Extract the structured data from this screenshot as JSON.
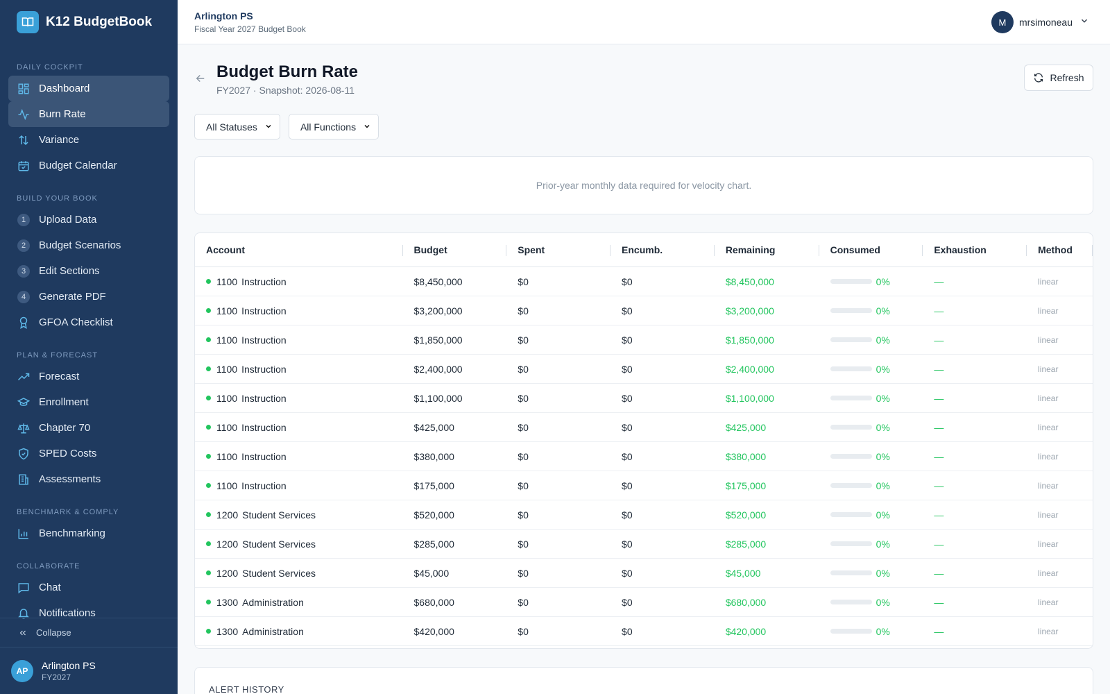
{
  "app": {
    "name": "K12 BudgetBook"
  },
  "sidebar": {
    "sections": [
      {
        "title": "DAILY COCKPIT",
        "items": [
          {
            "label": "Dashboard",
            "icon": "dashboard-icon",
            "active": true
          },
          {
            "label": "Burn Rate",
            "icon": "activity-icon",
            "active": true
          },
          {
            "label": "Variance",
            "icon": "arrows-up-down-icon",
            "active": false
          },
          {
            "label": "Budget Calendar",
            "icon": "calendar-icon",
            "active": false
          }
        ]
      },
      {
        "title": "BUILD YOUR BOOK",
        "items": [
          {
            "label": "Upload Data",
            "step": "1"
          },
          {
            "label": "Budget Scenarios",
            "step": "2"
          },
          {
            "label": "Edit Sections",
            "step": "3"
          },
          {
            "label": "Generate PDF",
            "step": "4"
          },
          {
            "label": "GFOA Checklist",
            "icon": "award-icon"
          }
        ]
      },
      {
        "title": "PLAN & FORECAST",
        "items": [
          {
            "label": "Forecast",
            "icon": "trending-up-icon"
          },
          {
            "label": "Enrollment",
            "icon": "graduation-cap-icon"
          },
          {
            "label": "Chapter 70",
            "icon": "scale-icon"
          },
          {
            "label": "SPED Costs",
            "icon": "shield-icon"
          },
          {
            "label": "Assessments",
            "icon": "building-icon"
          }
        ]
      },
      {
        "title": "BENCHMARK & COMPLY",
        "items": [
          {
            "label": "Benchmarking",
            "icon": "bar-chart-icon"
          }
        ]
      },
      {
        "title": "COLLABORATE",
        "items": [
          {
            "label": "Chat",
            "icon": "message-icon"
          },
          {
            "label": "Notifications",
            "icon": "bell-icon"
          }
        ]
      }
    ],
    "collapse_label": "Collapse",
    "footer": {
      "initials": "AP",
      "name": "Arlington PS",
      "fy": "FY2027"
    }
  },
  "topbar": {
    "org_name": "Arlington PS",
    "org_sub": "Fiscal Year 2027 Budget Book",
    "user_initial": "M",
    "user_name": "mrsimoneau"
  },
  "page": {
    "title": "Budget Burn Rate",
    "subtitle": "FY2027 · Snapshot: 2026-08-11",
    "refresh_label": "Refresh",
    "filters": [
      "All Statuses",
      "All Functions"
    ],
    "velocity_empty": "Prior-year monthly data required for velocity chart.",
    "alert_history_title": "ALERT HISTORY"
  },
  "colors": {
    "green": "#22c55e",
    "sidebar": "#1f3a5f",
    "accent": "#3aa0d8"
  },
  "table": {
    "columns": [
      "Account",
      "Budget",
      "Spent",
      "Encumb.",
      "Remaining",
      "Consumed",
      "Exhaustion",
      "Method"
    ],
    "rows": [
      {
        "code": "1100",
        "name": "Instruction",
        "budget": "$8,450,000",
        "spent": "$0",
        "encumb": "$0",
        "remaining": "$8,450,000",
        "consumed": "0%",
        "consumed_fraction": 0,
        "exhaustion": "—",
        "method": "linear"
      },
      {
        "code": "1100",
        "name": "Instruction",
        "budget": "$3,200,000",
        "spent": "$0",
        "encumb": "$0",
        "remaining": "$3,200,000",
        "consumed": "0%",
        "consumed_fraction": 0,
        "exhaustion": "—",
        "method": "linear"
      },
      {
        "code": "1100",
        "name": "Instruction",
        "budget": "$1,850,000",
        "spent": "$0",
        "encumb": "$0",
        "remaining": "$1,850,000",
        "consumed": "0%",
        "consumed_fraction": 0,
        "exhaustion": "—",
        "method": "linear"
      },
      {
        "code": "1100",
        "name": "Instruction",
        "budget": "$2,400,000",
        "spent": "$0",
        "encumb": "$0",
        "remaining": "$2,400,000",
        "consumed": "0%",
        "consumed_fraction": 0,
        "exhaustion": "—",
        "method": "linear"
      },
      {
        "code": "1100",
        "name": "Instruction",
        "budget": "$1,100,000",
        "spent": "$0",
        "encumb": "$0",
        "remaining": "$1,100,000",
        "consumed": "0%",
        "consumed_fraction": 0,
        "exhaustion": "—",
        "method": "linear"
      },
      {
        "code": "1100",
        "name": "Instruction",
        "budget": "$425,000",
        "spent": "$0",
        "encumb": "$0",
        "remaining": "$425,000",
        "consumed": "0%",
        "consumed_fraction": 0,
        "exhaustion": "—",
        "method": "linear"
      },
      {
        "code": "1100",
        "name": "Instruction",
        "budget": "$380,000",
        "spent": "$0",
        "encumb": "$0",
        "remaining": "$380,000",
        "consumed": "0%",
        "consumed_fraction": 0,
        "exhaustion": "—",
        "method": "linear"
      },
      {
        "code": "1100",
        "name": "Instruction",
        "budget": "$175,000",
        "spent": "$0",
        "encumb": "$0",
        "remaining": "$175,000",
        "consumed": "0%",
        "consumed_fraction": 0,
        "exhaustion": "—",
        "method": "linear"
      },
      {
        "code": "1200",
        "name": "Student Services",
        "budget": "$520,000",
        "spent": "$0",
        "encumb": "$0",
        "remaining": "$520,000",
        "consumed": "0%",
        "consumed_fraction": 0,
        "exhaustion": "—",
        "method": "linear"
      },
      {
        "code": "1200",
        "name": "Student Services",
        "budget": "$285,000",
        "spent": "$0",
        "encumb": "$0",
        "remaining": "$285,000",
        "consumed": "0%",
        "consumed_fraction": 0,
        "exhaustion": "—",
        "method": "linear"
      },
      {
        "code": "1200",
        "name": "Student Services",
        "budget": "$45,000",
        "spent": "$0",
        "encumb": "$0",
        "remaining": "$45,000",
        "consumed": "0%",
        "consumed_fraction": 0,
        "exhaustion": "—",
        "method": "linear"
      },
      {
        "code": "1300",
        "name": "Administration",
        "budget": "$680,000",
        "spent": "$0",
        "encumb": "$0",
        "remaining": "$680,000",
        "consumed": "0%",
        "consumed_fraction": 0,
        "exhaustion": "—",
        "method": "linear"
      },
      {
        "code": "1300",
        "name": "Administration",
        "budget": "$420,000",
        "spent": "$0",
        "encumb": "$0",
        "remaining": "$420,000",
        "consumed": "0%",
        "consumed_fraction": 0,
        "exhaustion": "—",
        "method": "linear"
      }
    ]
  }
}
